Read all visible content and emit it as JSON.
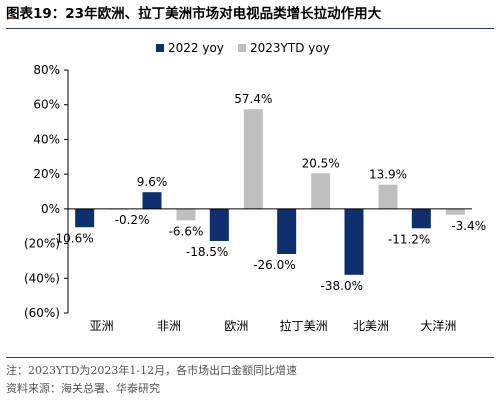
{
  "title": "图表19：23年欧洲、拉丁美洲市场对电视品类增长拉动作用大",
  "footnote": "注：2023YTD为2023年1-12月，各市场出口金额同比增速",
  "source": "资料来源：海关总署、华泰研究",
  "chart_data": {
    "type": "bar",
    "categories": [
      "亚洲",
      "非洲",
      "欧洲",
      "拉丁美洲",
      "北美洲",
      "大洋洲"
    ],
    "series": [
      {
        "name": "2022 yoy",
        "color": "#0e2f6e",
        "values": [
          -10.6,
          9.6,
          -18.5,
          -26.0,
          -38.0,
          -11.2
        ],
        "labels": [
          "-10.6%",
          "9.6%",
          "-18.5%",
          "-26.0%",
          "-38.0%",
          "-11.2%"
        ]
      },
      {
        "name": "2023YTD yoy",
        "color": "#bfbfbf",
        "values": [
          -0.2,
          -6.6,
          57.4,
          20.5,
          13.9,
          -3.4
        ],
        "labels": [
          "-0.2%",
          "-6.6%",
          "57.4%",
          "20.5%",
          "13.9%",
          "-3.4%"
        ]
      }
    ],
    "ylim": [
      -60,
      80
    ],
    "yticks": [
      80,
      60,
      40,
      20,
      0,
      -20,
      -40,
      -60
    ],
    "ytick_labels": [
      "80%",
      "60%",
      "40%",
      "20%",
      "0%",
      "(20%)",
      "(40%)",
      "(60%)"
    ],
    "legend_position": "top-center",
    "grid": false
  }
}
